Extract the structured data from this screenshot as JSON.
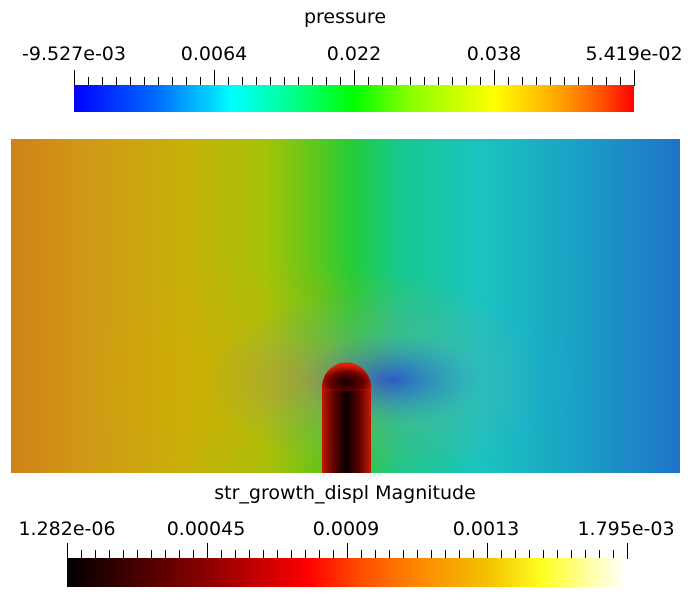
{
  "pressure_legend": {
    "title": "pressure",
    "tick_labels": [
      "-9.527e-03",
      "0.0064",
      "0.022",
      "0.038",
      "5.419e-02"
    ],
    "colormap": [
      "#0000ff",
      "#00ffff",
      "#00ff00",
      "#ffff00",
      "#ff0000"
    ]
  },
  "growth_legend": {
    "title": "str_growth_displ Magnitude",
    "tick_labels": [
      "1.282e-06",
      "0.00045",
      "0.0009",
      "0.0013",
      "1.795e-03"
    ],
    "colormap": [
      "#000000",
      "#c40000",
      "#ff0000",
      "#ff8400",
      "#ffff20",
      "#ffffff"
    ]
  },
  "field": {
    "left_color": "#d0821a",
    "center_color": "#22cc3a",
    "right_color": "#1f74c8",
    "obstacle_color": "#5a0000"
  }
}
